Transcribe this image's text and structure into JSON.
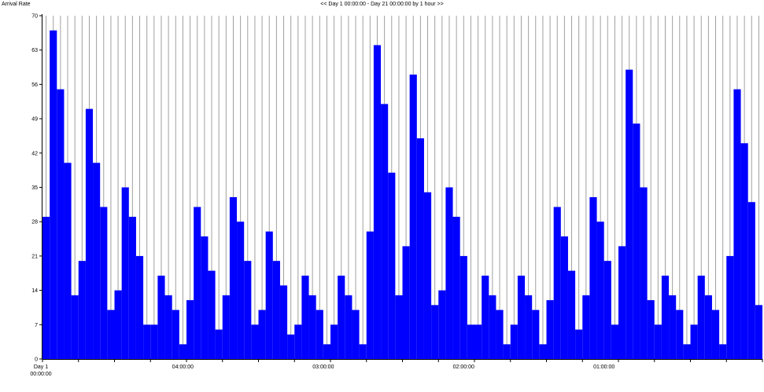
{
  "chart_data": {
    "type": "bar",
    "title": "<< Day 1 00:00:00 - Day 21 00:00:00 by 1 hour >>",
    "ylabel": "Arrival Rate",
    "xlabel": "",
    "ylim": [
      0,
      70
    ],
    "y_ticks": [
      0,
      7,
      14,
      21,
      28,
      35,
      42,
      49,
      56,
      63,
      70
    ],
    "x_tick_labels": [
      {
        "text": "Day 1",
        "sub": "00:00:00",
        "at_bar": 0
      },
      {
        "text": "04:00:00",
        "sub": "",
        "at_bar": 19.5
      },
      {
        "text": "03:00:00",
        "sub": "",
        "at_bar": 39
      },
      {
        "text": "02:00:00",
        "sub": "",
        "at_bar": 58.5
      },
      {
        "text": "01:00:00",
        "sub": "",
        "at_bar": 78
      }
    ],
    "grid": true,
    "bar_color": "#0000ff",
    "grid_color": "#a0a0a0",
    "values": [
      29,
      67,
      55,
      40,
      13,
      20,
      51,
      40,
      31,
      10,
      14,
      35,
      29,
      21,
      7,
      7,
      17,
      13,
      10,
      3,
      12,
      31,
      25,
      18,
      6,
      13,
      33,
      28,
      20,
      7,
      10,
      26,
      20,
      15,
      5,
      7,
      17,
      13,
      10,
      3,
      7,
      17,
      13,
      10,
      3,
      26,
      64,
      52,
      38,
      13,
      23,
      58,
      45,
      34,
      11,
      14,
      35,
      29,
      21,
      7,
      7,
      17,
      13,
      10,
      3,
      7,
      17,
      13,
      10,
      3,
      12,
      31,
      25,
      18,
      6,
      13,
      33,
      28,
      20,
      7,
      23,
      59,
      48,
      35,
      12,
      7,
      17,
      13,
      10,
      3,
      7,
      17,
      13,
      10,
      3,
      21,
      55,
      44,
      32,
      11
    ]
  }
}
